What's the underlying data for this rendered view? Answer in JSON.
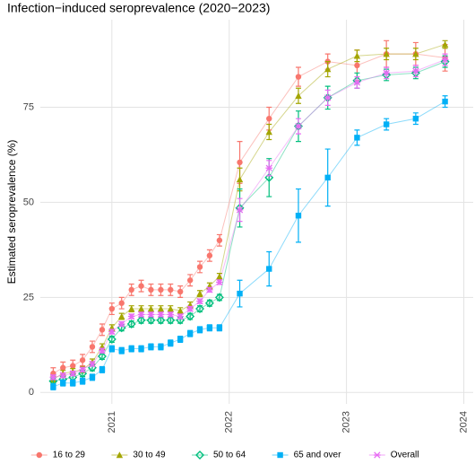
{
  "chart_data": {
    "type": "line",
    "title": "Infection−induced seroprevalence (2020−2023)",
    "y_label": "Estimated seroprevalence (%)",
    "x": [
      2020.5,
      2020.583,
      2020.667,
      2020.75,
      2020.833,
      2020.917,
      2021.0,
      2021.083,
      2021.167,
      2021.25,
      2021.333,
      2021.417,
      2021.5,
      2021.583,
      2021.667,
      2021.75,
      2021.833,
      2021.917,
      2022.09,
      2022.34,
      2022.59,
      2022.84,
      2023.09,
      2023.34,
      2023.59,
      2023.84
    ],
    "series": [
      {
        "name": "16 to 29",
        "color": "#F8766D",
        "marker": "circle",
        "values": [
          5,
          6.5,
          7,
          8.5,
          12,
          16.5,
          22,
          23.5,
          27,
          28,
          27,
          27,
          27,
          26.5,
          29.5,
          33,
          36,
          40,
          60.5,
          72,
          83,
          87,
          86,
          89,
          89,
          88
        ],
        "errors": [
          1.5,
          1.5,
          1.5,
          1.5,
          1.5,
          1.5,
          1.5,
          1.5,
          1.5,
          1.5,
          1.5,
          1.5,
          1.5,
          1.5,
          1.5,
          1.5,
          1.5,
          1.5,
          5.5,
          3,
          2.5,
          2,
          4,
          3.5,
          3,
          3.5
        ]
      },
      {
        "name": "30 to 49",
        "color": "#A3A500",
        "marker": "triangle",
        "values": [
          3.5,
          5,
          5.5,
          6,
          8,
          12,
          17,
          20,
          22,
          22,
          22,
          22,
          22,
          21.5,
          23,
          26,
          28,
          30.5,
          56,
          68.5,
          78,
          85,
          88.5,
          89,
          89,
          91.5
        ],
        "errors": [
          0.8,
          0.8,
          0.8,
          0.8,
          0.8,
          0.8,
          0.8,
          0.8,
          0.8,
          0.8,
          0.8,
          0.8,
          0.8,
          0.8,
          0.8,
          0.8,
          0.8,
          0.8,
          3,
          2,
          2,
          2,
          1.5,
          1.5,
          1.5,
          1
        ]
      },
      {
        "name": "50 to 64",
        "color": "#00BF7D",
        "marker": "diamond",
        "values": [
          3,
          3.5,
          4,
          5,
          6.5,
          9.5,
          14,
          17,
          18,
          19,
          19,
          19,
          19,
          19,
          20,
          22,
          23.5,
          25,
          48.5,
          56.5,
          70,
          77.5,
          82,
          83.5,
          84,
          87
        ],
        "errors": [
          0.8,
          0.8,
          0.8,
          0.8,
          0.8,
          0.8,
          0.8,
          0.8,
          0.8,
          0.8,
          0.8,
          0.8,
          0.8,
          0.8,
          0.8,
          0.8,
          0.8,
          0.8,
          5,
          5,
          4,
          3,
          2,
          1.5,
          1.5,
          1.5
        ]
      },
      {
        "name": "65 and over",
        "color": "#00B0F6",
        "marker": "square",
        "values": [
          1.5,
          2.5,
          2.5,
          3,
          4,
          6,
          11.5,
          11,
          11.5,
          11.5,
          12,
          12,
          13,
          14,
          15.5,
          16.5,
          17,
          17,
          26,
          32.5,
          46.5,
          56.5,
          67,
          70.5,
          72,
          76.5
        ],
        "errors": [
          0.8,
          0.8,
          0.8,
          0.8,
          0.8,
          0.8,
          0.8,
          0.8,
          0.8,
          0.8,
          0.8,
          0.8,
          0.8,
          0.8,
          0.8,
          0.8,
          0.8,
          0.8,
          3.5,
          4.5,
          7,
          7.5,
          2,
          1.5,
          1.5,
          1.5
        ]
      },
      {
        "name": "Overall",
        "color": "#E76BF3",
        "marker": "star",
        "values": [
          4,
          4.5,
          5,
          6,
          7.5,
          11,
          16,
          18,
          20,
          20.5,
          20.5,
          20.5,
          20.5,
          20,
          22,
          24,
          27,
          29,
          48,
          59,
          70,
          77.5,
          81.5,
          84,
          84.5,
          87.5
        ],
        "errors": [
          0.6,
          0.6,
          0.6,
          0.6,
          0.6,
          0.6,
          0.6,
          0.6,
          0.6,
          0.6,
          0.6,
          0.6,
          0.6,
          0.6,
          0.6,
          0.6,
          0.6,
          0.6,
          3,
          2,
          2,
          2,
          1.5,
          1.5,
          1.5,
          1.5
        ]
      }
    ],
    "xlim": [
      2020.39,
      2024.08
    ],
    "xticks": [
      2021,
      2022,
      2023,
      2024
    ],
    "ylim": [
      -3,
      98
    ],
    "yticks": [
      0,
      25,
      50,
      75
    ],
    "grid": true,
    "legend": "bottom"
  }
}
